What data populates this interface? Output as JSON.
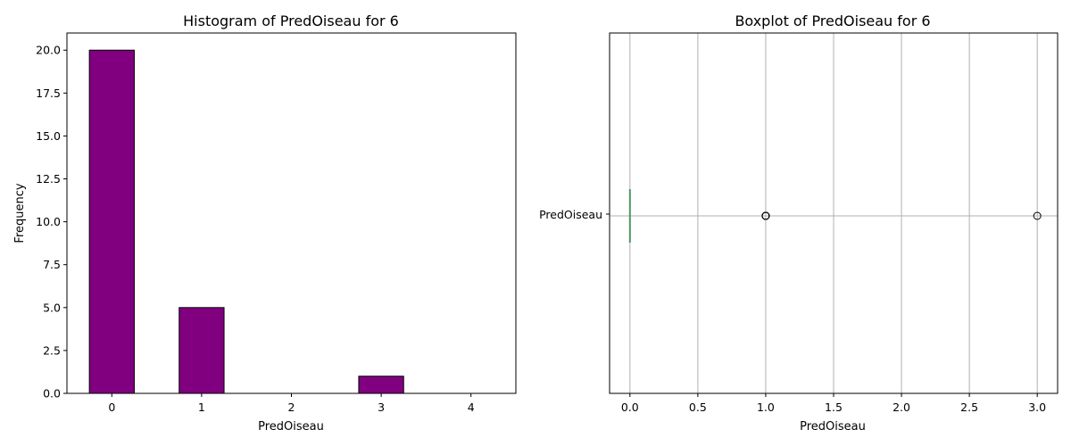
{
  "chart_data": [
    {
      "type": "bar",
      "title": "Histogram of PredOiseau for 6",
      "xlabel": "PredOiseau",
      "ylabel": "Frequency",
      "categories": [
        "0",
        "1",
        "2",
        "3",
        "4"
      ],
      "values": [
        20,
        5,
        0,
        1,
        0
      ],
      "ylim": [
        0,
        21
      ],
      "yticks": [
        "0.0",
        "2.5",
        "5.0",
        "7.5",
        "10.0",
        "12.5",
        "15.0",
        "17.5",
        "20.0"
      ],
      "bar_color": "#800080",
      "edge_color": "#000000",
      "grid": false
    },
    {
      "type": "boxplot",
      "title": "Boxplot of PredOiseau for 6",
      "xlabel": "PredOiseau",
      "category": "PredOiseau",
      "xlim": [
        -0.15,
        3.15
      ],
      "xticks": [
        "0.0",
        "0.5",
        "1.0",
        "1.5",
        "2.0",
        "2.5",
        "3.0"
      ],
      "median": 0,
      "q1": 0,
      "q3": 0,
      "whisker_low": 0,
      "whisker_high": 0,
      "outliers": [
        1,
        1,
        1,
        1,
        1,
        3
      ],
      "median_color": "#4c9a64",
      "grid": true,
      "grid_color": "#b0b0b0"
    }
  ]
}
